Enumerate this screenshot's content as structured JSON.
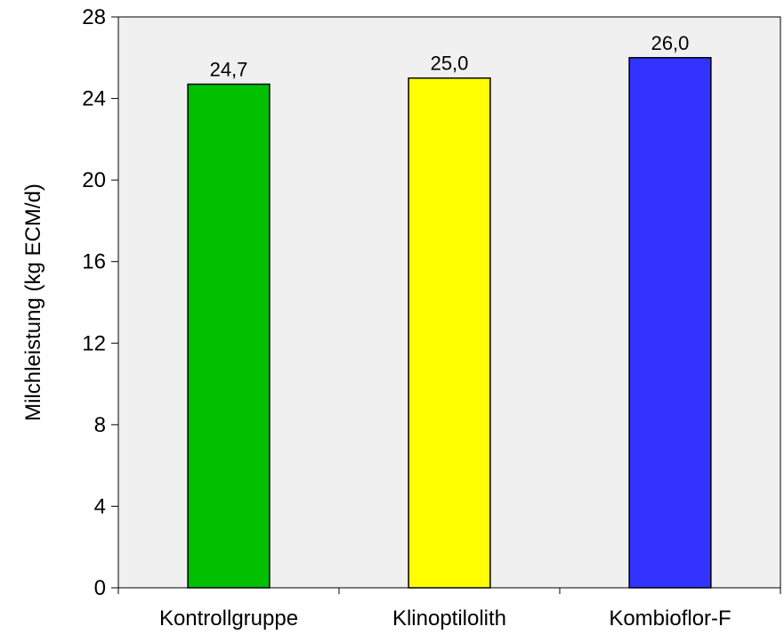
{
  "chart_data": {
    "type": "bar",
    "title": "",
    "xlabel": "",
    "ylabel": "Milchleistung (kg ECM/d)",
    "categories": [
      "Kontrollgruppe",
      "Klinoptilolith",
      "Kombioflor-F"
    ],
    "values": [
      24.7,
      25.0,
      26.0
    ],
    "value_labels": [
      "24,7",
      "25,0",
      "26,0"
    ],
    "bar_colors": [
      "#00c000",
      "#ffff00",
      "#3333ff"
    ],
    "ylim": [
      0,
      28
    ],
    "yticks": [
      0,
      4,
      8,
      12,
      16,
      20,
      24,
      28
    ],
    "grid": false,
    "legend": "none",
    "plot_background": "#f0f0f0"
  }
}
